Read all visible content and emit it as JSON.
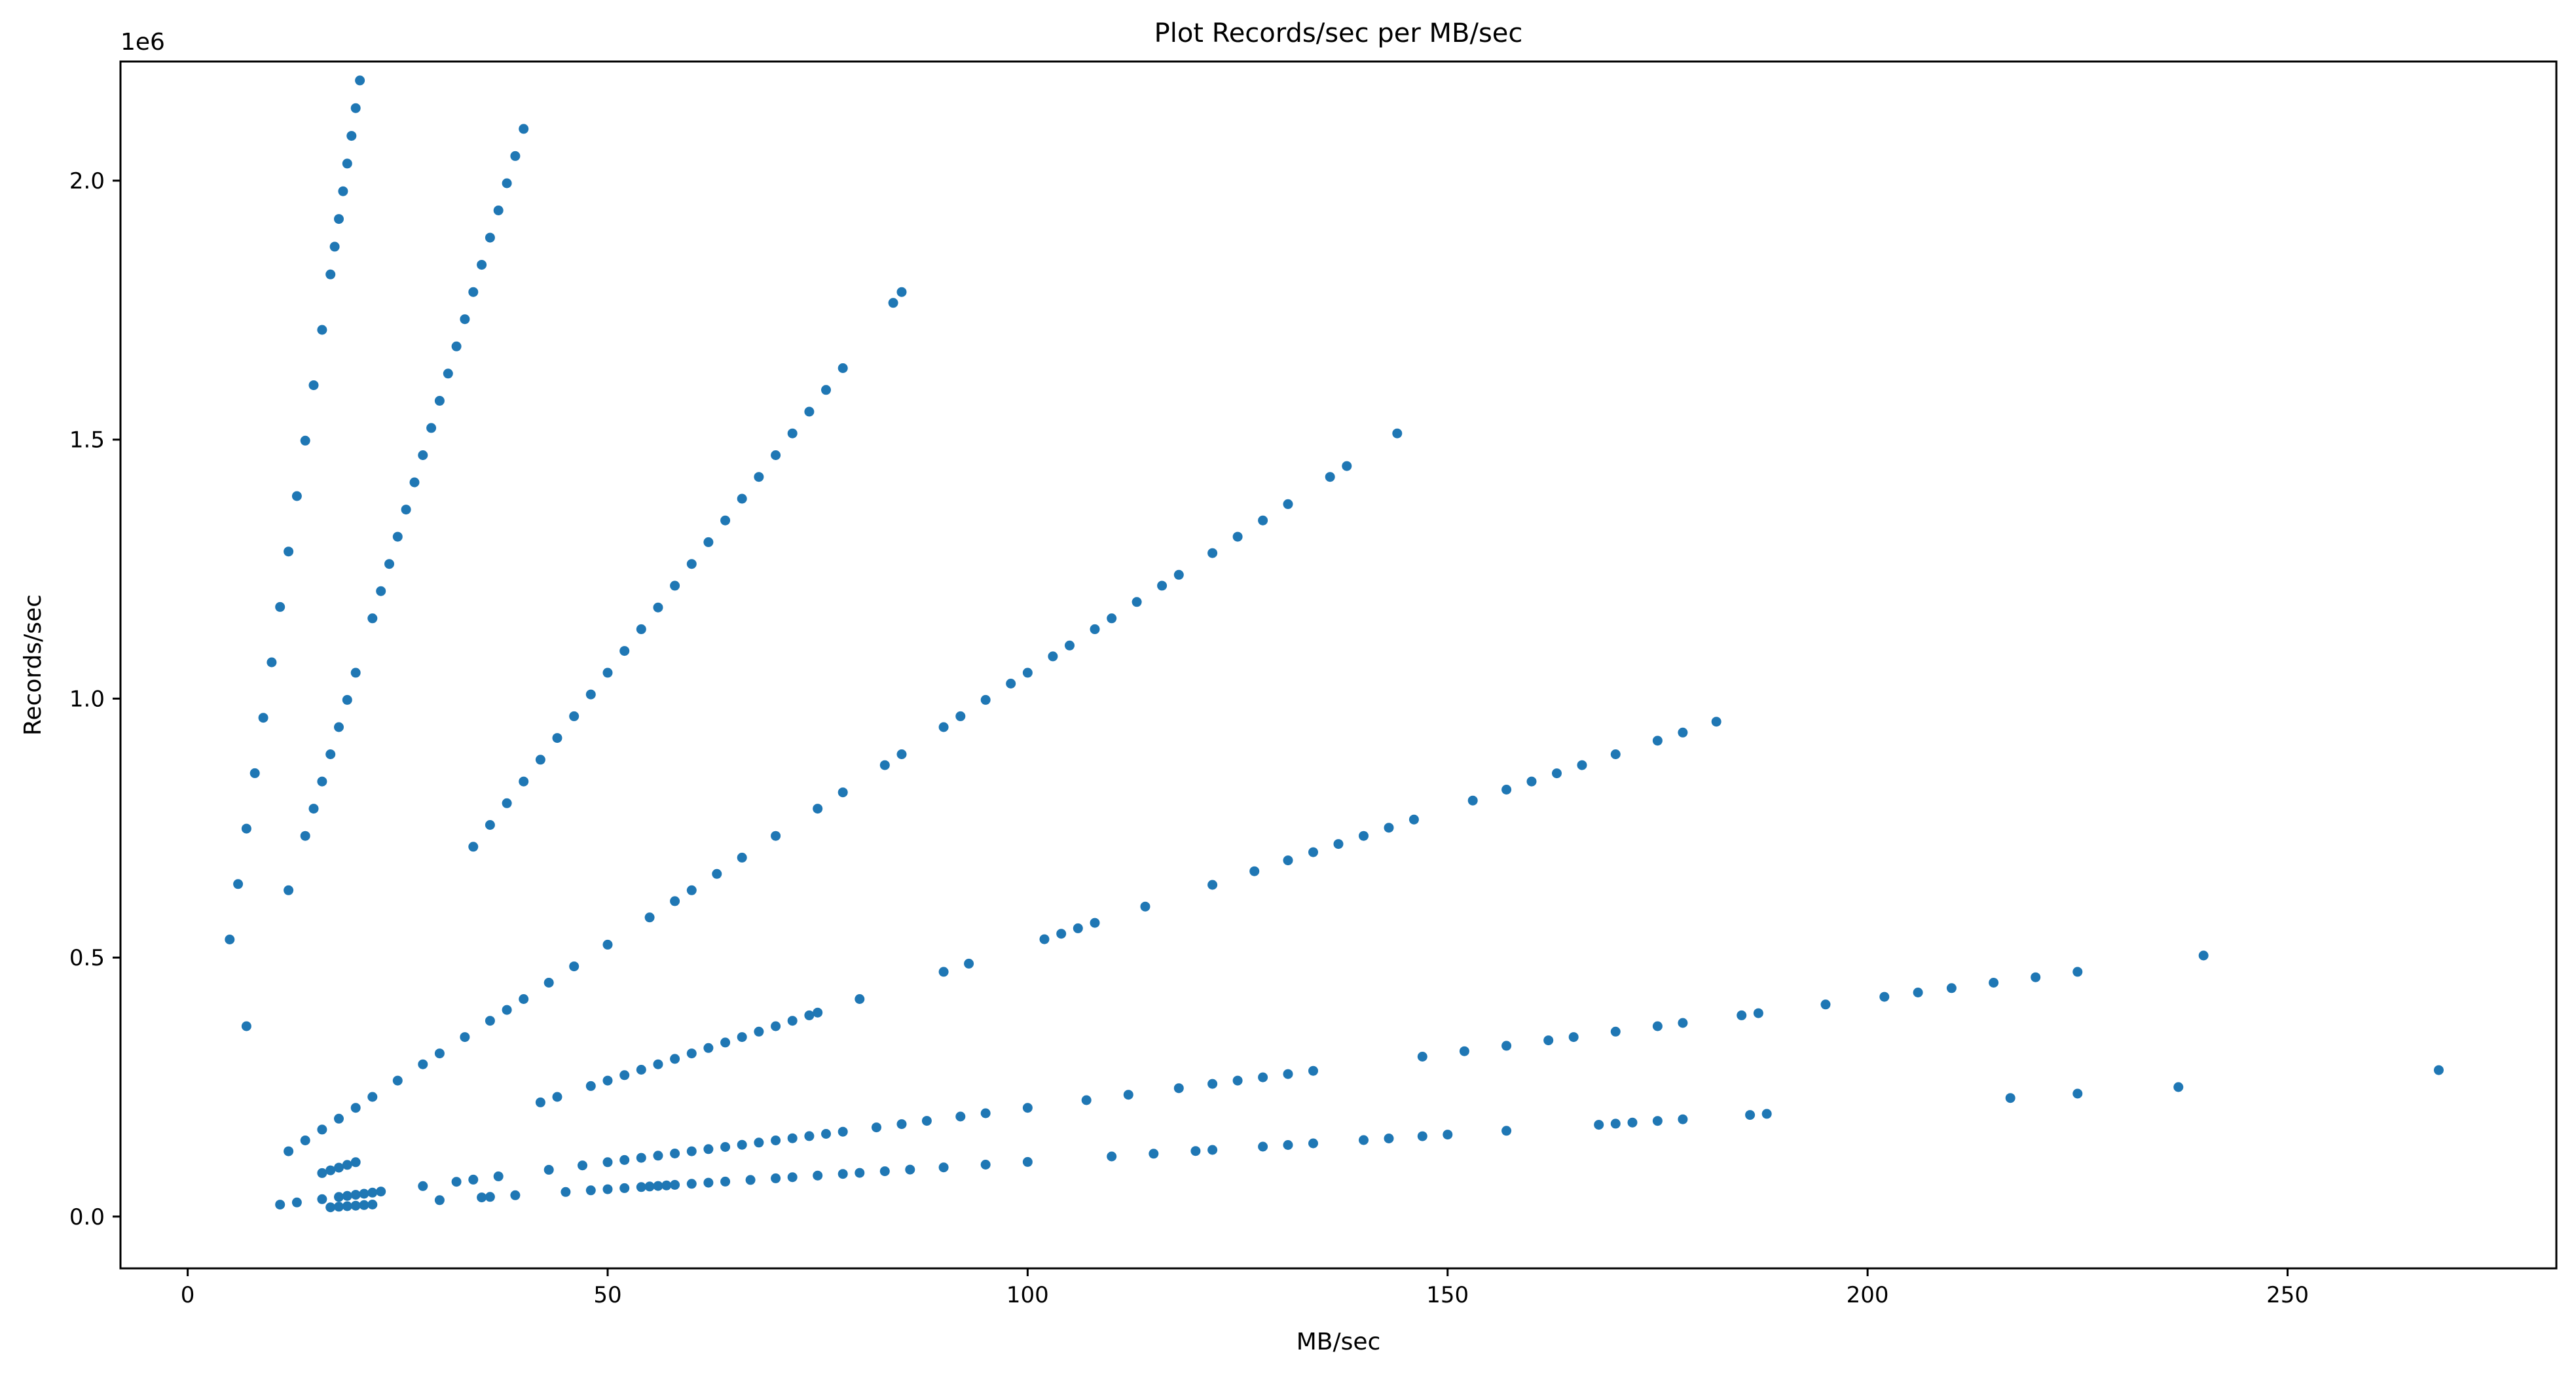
{
  "chart_data": {
    "type": "scatter",
    "title": "Plot Records/sec per MB/sec",
    "xlabel": "MB/sec",
    "ylabel": "Records/sec",
    "y_offset_label": "1e6",
    "xlim": [
      -8,
      282
    ],
    "ylim": [
      -100000,
      2230000
    ],
    "xticks": [
      0,
      50,
      100,
      150,
      200,
      250
    ],
    "yticks": [
      0,
      500000,
      1000000,
      1500000,
      2000000
    ],
    "ytick_labels": [
      "0.0",
      "0.5",
      "1.0",
      "1.5",
      "2.0"
    ],
    "grid": false,
    "marker_color": "#1f77b4",
    "streaks": [
      {
        "x": [
          5,
          6,
          7,
          8,
          9,
          10,
          11,
          12,
          13,
          14,
          15,
          16,
          17,
          17.5,
          18,
          18.5,
          19,
          19.5,
          20,
          20.5
        ],
        "slope": 107000
      },
      {
        "x": [
          7,
          12,
          14,
          15,
          16,
          17,
          18,
          19,
          20,
          22,
          23,
          24,
          25,
          26,
          27,
          28,
          29,
          30,
          31,
          32,
          33,
          34,
          35,
          36,
          37,
          38,
          39,
          40
        ],
        "slope": 52500
      },
      {
        "x": [
          34,
          36,
          38,
          40,
          42,
          44,
          46,
          48,
          50,
          52,
          54,
          56,
          58,
          60,
          62,
          64,
          66,
          68,
          70,
          72,
          74,
          76,
          78,
          84,
          85
        ],
        "slope": 21000
      },
      {
        "x": [
          12,
          14,
          16,
          18,
          20,
          22,
          25,
          28,
          30,
          33,
          36,
          38,
          40,
          43,
          46,
          50,
          55,
          58,
          60,
          63,
          66,
          70,
          75,
          78,
          83,
          85,
          90,
          92,
          95,
          98,
          100,
          103,
          105,
          108,
          110,
          113,
          116,
          118,
          122,
          125,
          128,
          131,
          136,
          138,
          144
        ],
        "slope": 10500
      },
      {
        "x": [
          16,
          17,
          18,
          19,
          20,
          42,
          44,
          48,
          50,
          52,
          54,
          56,
          58,
          60,
          62,
          64,
          66,
          68,
          70,
          72,
          74,
          75,
          80,
          90,
          93,
          102,
          104,
          106,
          108,
          114,
          122,
          127,
          131,
          134,
          137,
          140,
          143,
          146,
          153,
          157,
          160,
          163,
          166,
          170,
          175,
          178,
          182
        ],
        "slope": 5250
      },
      {
        "x": [
          11,
          13,
          16,
          18,
          19,
          20,
          21,
          22,
          23,
          28,
          32,
          34,
          37,
          43,
          47,
          50,
          52,
          54,
          56,
          58,
          60,
          62,
          64,
          66,
          68,
          70,
          72,
          74,
          76,
          78,
          82,
          85,
          88,
          92,
          95,
          100,
          107,
          112,
          118,
          122,
          125,
          128,
          131,
          134,
          147,
          152,
          157,
          162,
          165,
          170,
          175,
          178,
          185,
          187,
          195,
          202,
          206,
          210,
          215,
          220,
          225,
          240
        ],
        "slope": 2100
      },
      {
        "x": [
          17,
          18,
          19,
          20,
          21,
          22,
          30,
          35,
          36,
          39,
          45,
          48,
          50,
          52,
          54,
          55,
          56,
          57,
          58,
          60,
          62,
          64,
          67,
          70,
          72,
          75,
          78,
          80,
          83,
          86,
          90,
          95,
          100,
          110,
          115,
          120,
          122,
          128,
          131,
          134,
          140,
          143,
          147,
          150,
          157,
          168,
          170,
          172,
          175,
          178,
          186,
          188,
          217,
          225,
          237,
          268
        ],
        "slope": 1055
      }
    ]
  }
}
